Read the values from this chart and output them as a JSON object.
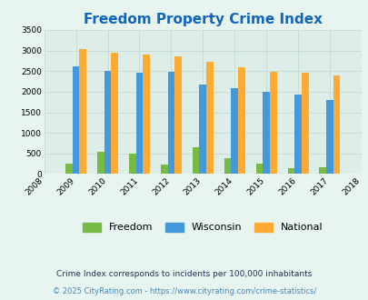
{
  "title": "Freedom Property Crime Index",
  "years": [
    2008,
    2009,
    2010,
    2011,
    2012,
    2013,
    2014,
    2015,
    2016,
    2017,
    2018
  ],
  "bar_years": [
    2009,
    2010,
    2011,
    2012,
    2013,
    2014,
    2015,
    2016,
    2017
  ],
  "freedom": [
    260,
    530,
    490,
    220,
    640,
    390,
    250,
    150,
    155
  ],
  "wisconsin": [
    2620,
    2510,
    2460,
    2480,
    2175,
    2095,
    1990,
    1935,
    1795
  ],
  "national": [
    3035,
    2955,
    2900,
    2860,
    2720,
    2600,
    2490,
    2470,
    2385
  ],
  "freedom_color": "#77bb44",
  "wisconsin_color": "#4499dd",
  "national_color": "#ffaa33",
  "bg_color": "#e8f4f0",
  "plot_bg": "#ddeee8",
  "ylim": [
    0,
    3500
  ],
  "yticks": [
    0,
    500,
    1000,
    1500,
    2000,
    2500,
    3000,
    3500
  ],
  "grid_color": "#c8dcd8",
  "title_color": "#1166bb",
  "title_fontsize": 11,
  "footnote1": "Crime Index corresponds to incidents per 100,000 inhabitants",
  "footnote2": "© 2025 CityRating.com - https://www.cityrating.com/crime-statistics/",
  "footnote1_color": "#223355",
  "footnote2_color": "#4488bb"
}
